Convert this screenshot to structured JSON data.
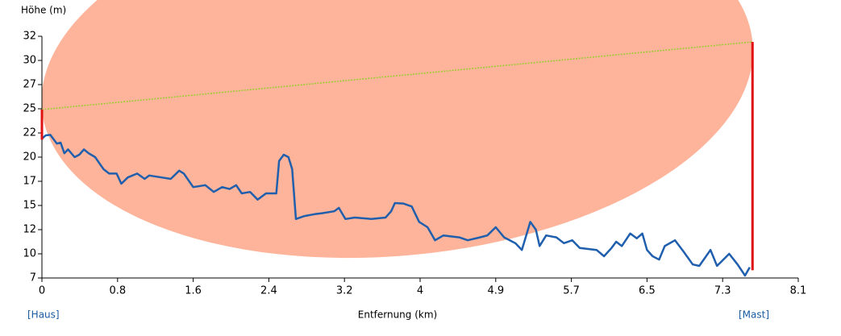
{
  "chart_data": {
    "type": "elevation-profile",
    "y_label": "Höhe (m)",
    "x_label": "Entfernung (km)",
    "start_label": "[Haus]",
    "end_label": "[Mast]",
    "xlim": [
      0,
      8.1
    ],
    "ylim": [
      7,
      32
    ],
    "xticks": [
      0,
      {
        "value": 0.81,
        "label": "0.8"
      },
      {
        "value": 1.62,
        "label": "1.6"
      },
      {
        "value": 2.43,
        "label": "2.4"
      },
      {
        "value": 3.24,
        "label": "3.2"
      },
      {
        "value": 4.05,
        "label": "4"
      },
      {
        "value": 4.86,
        "label": "4.9"
      },
      {
        "value": 5.67,
        "label": "5.7"
      },
      {
        "value": 6.48,
        "label": "6.5"
      },
      {
        "value": 7.29,
        "label": "7.3"
      },
      8.1
    ],
    "yticks": [
      7,
      {
        "value": 9.5,
        "label": "10"
      },
      12,
      {
        "value": 14.5,
        "label": "15"
      },
      17,
      {
        "value": 19.5,
        "label": "20"
      },
      22,
      {
        "value": 24.5,
        "label": "25"
      },
      27,
      {
        "value": 29.5,
        "label": "30"
      },
      32
    ],
    "terrain": {
      "color": "#1f5fad",
      "x": [
        0,
        0.04,
        0.09,
        0.16,
        0.2,
        0.24,
        0.28,
        0.35,
        0.4,
        0.45,
        0.5,
        0.57,
        0.66,
        0.72,
        0.8,
        0.85,
        0.92,
        1.02,
        1.1,
        1.15,
        1.28,
        1.38,
        1.47,
        1.52,
        1.62,
        1.75,
        1.84,
        1.93,
        2.01,
        2.08,
        2.14,
        2.23,
        2.31,
        2.4,
        2.51,
        2.54,
        2.59,
        2.64,
        2.68,
        2.72,
        2.81,
        2.92,
        3.0,
        3.13,
        3.18,
        3.25,
        3.35,
        3.53,
        3.68,
        3.74,
        3.78,
        3.87,
        3.96,
        4.04,
        4.13,
        4.21,
        4.3,
        4.47,
        4.56,
        4.69,
        4.77,
        4.86,
        4.95,
        5.07,
        5.14,
        5.23,
        5.29,
        5.33,
        5.4,
        5.51,
        5.59,
        5.68,
        5.76,
        5.94,
        6.02,
        6.1,
        6.15,
        6.21,
        6.3,
        6.37,
        6.43,
        6.48,
        6.54,
        6.61,
        6.67,
        6.78,
        6.87,
        6.97,
        7.04,
        7.16,
        7.23,
        7.36,
        7.45,
        7.53,
        7.58
      ],
      "values": [
        21.4,
        21.75,
        21.8,
        20.9,
        21,
        19.9,
        20.3,
        19.5,
        19.75,
        20.3,
        19.9,
        19.5,
        18.25,
        17.8,
        17.8,
        16.75,
        17.4,
        17.8,
        17.25,
        17.6,
        17.4,
        17.25,
        18.1,
        17.8,
        16.4,
        16.6,
        15.9,
        16.4,
        16.2,
        16.6,
        15.75,
        15.9,
        15.1,
        15.75,
        15.75,
        19.1,
        19.75,
        19.5,
        18.25,
        13.1,
        13.4,
        13.6,
        13.7,
        13.9,
        14.25,
        13.1,
        13.25,
        13.1,
        13.25,
        13.9,
        14.75,
        14.7,
        14.4,
        12.8,
        12.25,
        10.9,
        11.4,
        11.2,
        10.9,
        11.2,
        11.4,
        12.25,
        11.2,
        10.6,
        9.9,
        12.8,
        12,
        10.3,
        11.4,
        11.2,
        10.6,
        10.9,
        10.1,
        9.9,
        9.25,
        10.1,
        10.75,
        10.3,
        11.6,
        11.1,
        11.6,
        9.9,
        9.25,
        8.9,
        10.3,
        10.9,
        9.75,
        8.4,
        8.25,
        9.9,
        8.25,
        9.5,
        8.4,
        7.25,
        8.1
      ]
    },
    "masts": [
      {
        "x": 0,
        "bottom": 21.3,
        "top": 24.42
      },
      {
        "x": 7.61,
        "bottom": 7.8,
        "top": 31.42
      }
    ],
    "mast_color": "#e01010",
    "line_of_sight_color": "#9acd32",
    "fresnel_zone": {
      "radius": 18.6,
      "color": "#fdb49a"
    }
  }
}
